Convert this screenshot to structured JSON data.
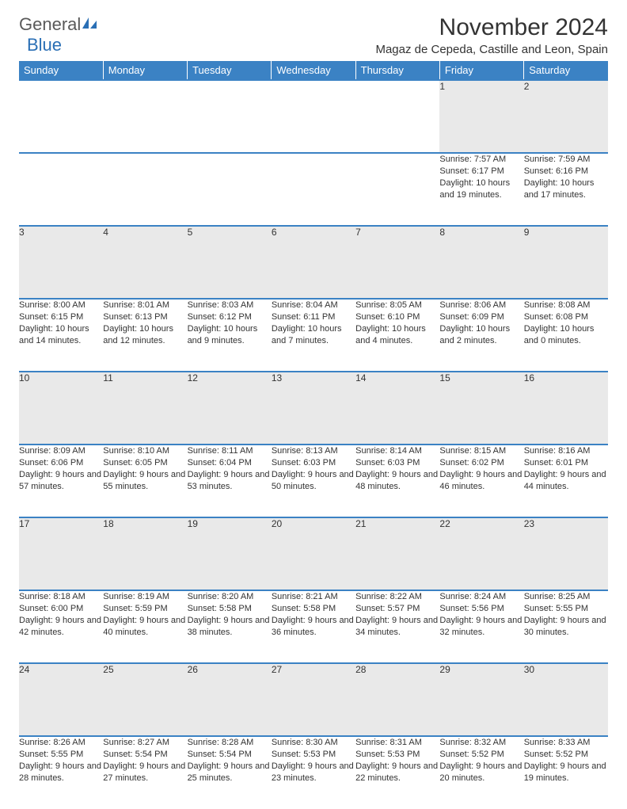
{
  "logo": {
    "general": "General",
    "blue": "Blue"
  },
  "title": "November 2024",
  "location": "Magaz de Cepeda, Castille and Leon, Spain",
  "colors": {
    "header_bg": "#3b82c4",
    "header_text": "#ffffff",
    "daynum_bg": "#e9e9e9",
    "border": "#3b82c4",
    "logo_blue": "#2a6fb5",
    "logo_gray": "#5a5a5a"
  },
  "dayHeaders": [
    "Sunday",
    "Monday",
    "Tuesday",
    "Wednesday",
    "Thursday",
    "Friday",
    "Saturday"
  ],
  "weeks": [
    [
      {
        "n": "",
        "empty": true
      },
      {
        "n": "",
        "empty": true
      },
      {
        "n": "",
        "empty": true
      },
      {
        "n": "",
        "empty": true
      },
      {
        "n": "",
        "empty": true
      },
      {
        "n": "1",
        "sunrise": "7:57 AM",
        "sunset": "6:17 PM",
        "daylight": "10 hours and 19 minutes."
      },
      {
        "n": "2",
        "sunrise": "7:59 AM",
        "sunset": "6:16 PM",
        "daylight": "10 hours and 17 minutes."
      }
    ],
    [
      {
        "n": "3",
        "sunrise": "8:00 AM",
        "sunset": "6:15 PM",
        "daylight": "10 hours and 14 minutes."
      },
      {
        "n": "4",
        "sunrise": "8:01 AM",
        "sunset": "6:13 PM",
        "daylight": "10 hours and 12 minutes."
      },
      {
        "n": "5",
        "sunrise": "8:03 AM",
        "sunset": "6:12 PM",
        "daylight": "10 hours and 9 minutes."
      },
      {
        "n": "6",
        "sunrise": "8:04 AM",
        "sunset": "6:11 PM",
        "daylight": "10 hours and 7 minutes."
      },
      {
        "n": "7",
        "sunrise": "8:05 AM",
        "sunset": "6:10 PM",
        "daylight": "10 hours and 4 minutes."
      },
      {
        "n": "8",
        "sunrise": "8:06 AM",
        "sunset": "6:09 PM",
        "daylight": "10 hours and 2 minutes."
      },
      {
        "n": "9",
        "sunrise": "8:08 AM",
        "sunset": "6:08 PM",
        "daylight": "10 hours and 0 minutes."
      }
    ],
    [
      {
        "n": "10",
        "sunrise": "8:09 AM",
        "sunset": "6:06 PM",
        "daylight": "9 hours and 57 minutes."
      },
      {
        "n": "11",
        "sunrise": "8:10 AM",
        "sunset": "6:05 PM",
        "daylight": "9 hours and 55 minutes."
      },
      {
        "n": "12",
        "sunrise": "8:11 AM",
        "sunset": "6:04 PM",
        "daylight": "9 hours and 53 minutes."
      },
      {
        "n": "13",
        "sunrise": "8:13 AM",
        "sunset": "6:03 PM",
        "daylight": "9 hours and 50 minutes."
      },
      {
        "n": "14",
        "sunrise": "8:14 AM",
        "sunset": "6:03 PM",
        "daylight": "9 hours and 48 minutes."
      },
      {
        "n": "15",
        "sunrise": "8:15 AM",
        "sunset": "6:02 PM",
        "daylight": "9 hours and 46 minutes."
      },
      {
        "n": "16",
        "sunrise": "8:16 AM",
        "sunset": "6:01 PM",
        "daylight": "9 hours and 44 minutes."
      }
    ],
    [
      {
        "n": "17",
        "sunrise": "8:18 AM",
        "sunset": "6:00 PM",
        "daylight": "9 hours and 42 minutes."
      },
      {
        "n": "18",
        "sunrise": "8:19 AM",
        "sunset": "5:59 PM",
        "daylight": "9 hours and 40 minutes."
      },
      {
        "n": "19",
        "sunrise": "8:20 AM",
        "sunset": "5:58 PM",
        "daylight": "9 hours and 38 minutes."
      },
      {
        "n": "20",
        "sunrise": "8:21 AM",
        "sunset": "5:58 PM",
        "daylight": "9 hours and 36 minutes."
      },
      {
        "n": "21",
        "sunrise": "8:22 AM",
        "sunset": "5:57 PM",
        "daylight": "9 hours and 34 minutes."
      },
      {
        "n": "22",
        "sunrise": "8:24 AM",
        "sunset": "5:56 PM",
        "daylight": "9 hours and 32 minutes."
      },
      {
        "n": "23",
        "sunrise": "8:25 AM",
        "sunset": "5:55 PM",
        "daylight": "9 hours and 30 minutes."
      }
    ],
    [
      {
        "n": "24",
        "sunrise": "8:26 AM",
        "sunset": "5:55 PM",
        "daylight": "9 hours and 28 minutes."
      },
      {
        "n": "25",
        "sunrise": "8:27 AM",
        "sunset": "5:54 PM",
        "daylight": "9 hours and 27 minutes."
      },
      {
        "n": "26",
        "sunrise": "8:28 AM",
        "sunset": "5:54 PM",
        "daylight": "9 hours and 25 minutes."
      },
      {
        "n": "27",
        "sunrise": "8:30 AM",
        "sunset": "5:53 PM",
        "daylight": "9 hours and 23 minutes."
      },
      {
        "n": "28",
        "sunrise": "8:31 AM",
        "sunset": "5:53 PM",
        "daylight": "9 hours and 22 minutes."
      },
      {
        "n": "29",
        "sunrise": "8:32 AM",
        "sunset": "5:52 PM",
        "daylight": "9 hours and 20 minutes."
      },
      {
        "n": "30",
        "sunrise": "8:33 AM",
        "sunset": "5:52 PM",
        "daylight": "9 hours and 19 minutes."
      }
    ]
  ],
  "labels": {
    "sunrise": "Sunrise:",
    "sunset": "Sunset:",
    "daylight": "Daylight:"
  }
}
